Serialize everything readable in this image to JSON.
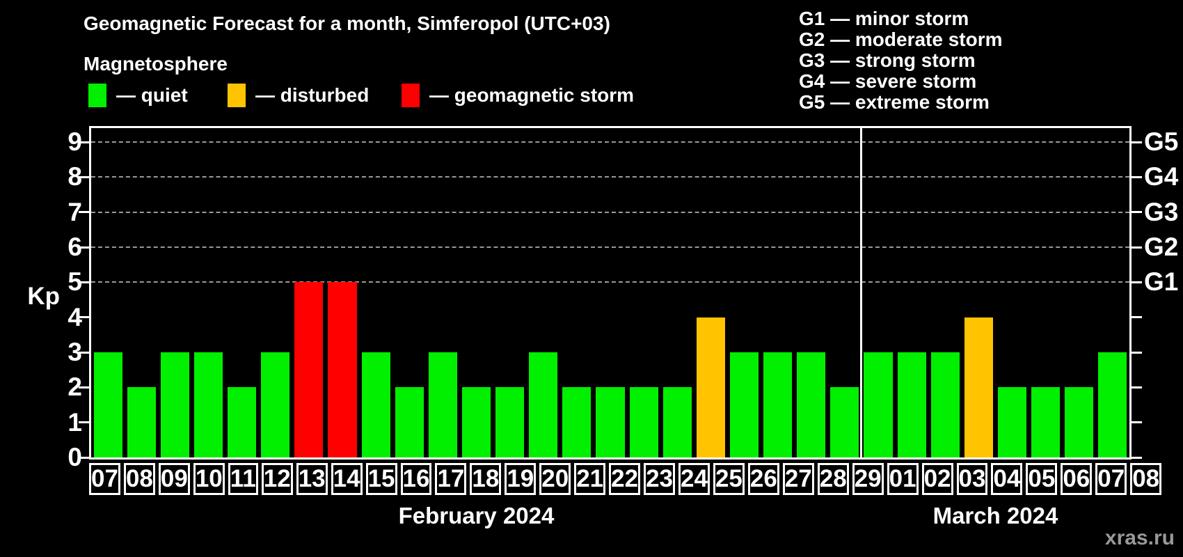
{
  "title": "Geomagnetic Forecast for a month, Simferopol (UTC+03)",
  "subtitle": "Magnetosphere",
  "watermark": "xras.ru",
  "colors": {
    "quiet": "#00f000",
    "disturbed": "#ffc300",
    "storm": "#ff0000",
    "grid": "#9a9a9a",
    "axis": "#ffffff",
    "background": "#000000",
    "watermark": "#999999"
  },
  "legend": [
    {
      "status": "quiet",
      "label": "— quiet"
    },
    {
      "status": "disturbed",
      "label": "— disturbed"
    },
    {
      "status": "storm",
      "label": "— geomagnetic storm"
    }
  ],
  "g_scale_legend": [
    "G1 — minor storm",
    "G2 — moderate storm",
    "G3 — strong storm",
    "G4 — severe storm",
    "G5 — extreme storm"
  ],
  "y_axis": {
    "label": "Kp",
    "ticks": [
      0,
      1,
      2,
      3,
      4,
      5,
      6,
      7,
      8,
      9
    ]
  },
  "right_axis": {
    "labels": [
      {
        "kp": 5,
        "label": "G1"
      },
      {
        "kp": 6,
        "label": "G2"
      },
      {
        "kp": 7,
        "label": "G3"
      },
      {
        "kp": 8,
        "label": "G4"
      },
      {
        "kp": 9,
        "label": "G5"
      }
    ]
  },
  "chart_data": {
    "type": "bar",
    "title": "Geomagnetic Forecast for a month, Simferopol (UTC+03)",
    "xlabel": "",
    "ylabel": "Kp",
    "ylim": [
      0,
      9.4
    ],
    "grid": "dashed horizontal at Kp 5-9",
    "gridlines_kp": [
      5,
      6,
      7,
      8,
      9
    ],
    "legend_position": "top-left",
    "months": [
      {
        "name": "February 2024",
        "days": [
          {
            "day": "07",
            "kp": 3,
            "status": "quiet"
          },
          {
            "day": "08",
            "kp": 2,
            "status": "quiet"
          },
          {
            "day": "09",
            "kp": 3,
            "status": "quiet"
          },
          {
            "day": "10",
            "kp": 3,
            "status": "quiet"
          },
          {
            "day": "11",
            "kp": 2,
            "status": "quiet"
          },
          {
            "day": "12",
            "kp": 3,
            "status": "quiet"
          },
          {
            "day": "13",
            "kp": 5,
            "status": "storm"
          },
          {
            "day": "14",
            "kp": 5,
            "status": "storm"
          },
          {
            "day": "15",
            "kp": 3,
            "status": "quiet"
          },
          {
            "day": "16",
            "kp": 2,
            "status": "quiet"
          },
          {
            "day": "17",
            "kp": 3,
            "status": "quiet"
          },
          {
            "day": "18",
            "kp": 2,
            "status": "quiet"
          },
          {
            "day": "19",
            "kp": 2,
            "status": "quiet"
          },
          {
            "day": "20",
            "kp": 3,
            "status": "quiet"
          },
          {
            "day": "21",
            "kp": 2,
            "status": "quiet"
          },
          {
            "day": "22",
            "kp": 2,
            "status": "quiet"
          },
          {
            "day": "23",
            "kp": 2,
            "status": "quiet"
          },
          {
            "day": "24",
            "kp": 2,
            "status": "quiet"
          },
          {
            "day": "25",
            "kp": 4,
            "status": "disturbed"
          },
          {
            "day": "26",
            "kp": 3,
            "status": "quiet"
          },
          {
            "day": "27",
            "kp": 3,
            "status": "quiet"
          },
          {
            "day": "28",
            "kp": 3,
            "status": "quiet"
          },
          {
            "day": "29",
            "kp": 2,
            "status": "quiet"
          }
        ]
      },
      {
        "name": "March 2024",
        "days": [
          {
            "day": "01",
            "kp": 3,
            "status": "quiet"
          },
          {
            "day": "02",
            "kp": 3,
            "status": "quiet"
          },
          {
            "day": "03",
            "kp": 3,
            "status": "quiet"
          },
          {
            "day": "04",
            "kp": 4,
            "status": "disturbed"
          },
          {
            "day": "05",
            "kp": 2,
            "status": "quiet"
          },
          {
            "day": "06",
            "kp": 2,
            "status": "quiet"
          },
          {
            "day": "07",
            "kp": 2,
            "status": "quiet"
          },
          {
            "day": "08",
            "kp": 3,
            "status": "quiet"
          }
        ]
      }
    ]
  }
}
